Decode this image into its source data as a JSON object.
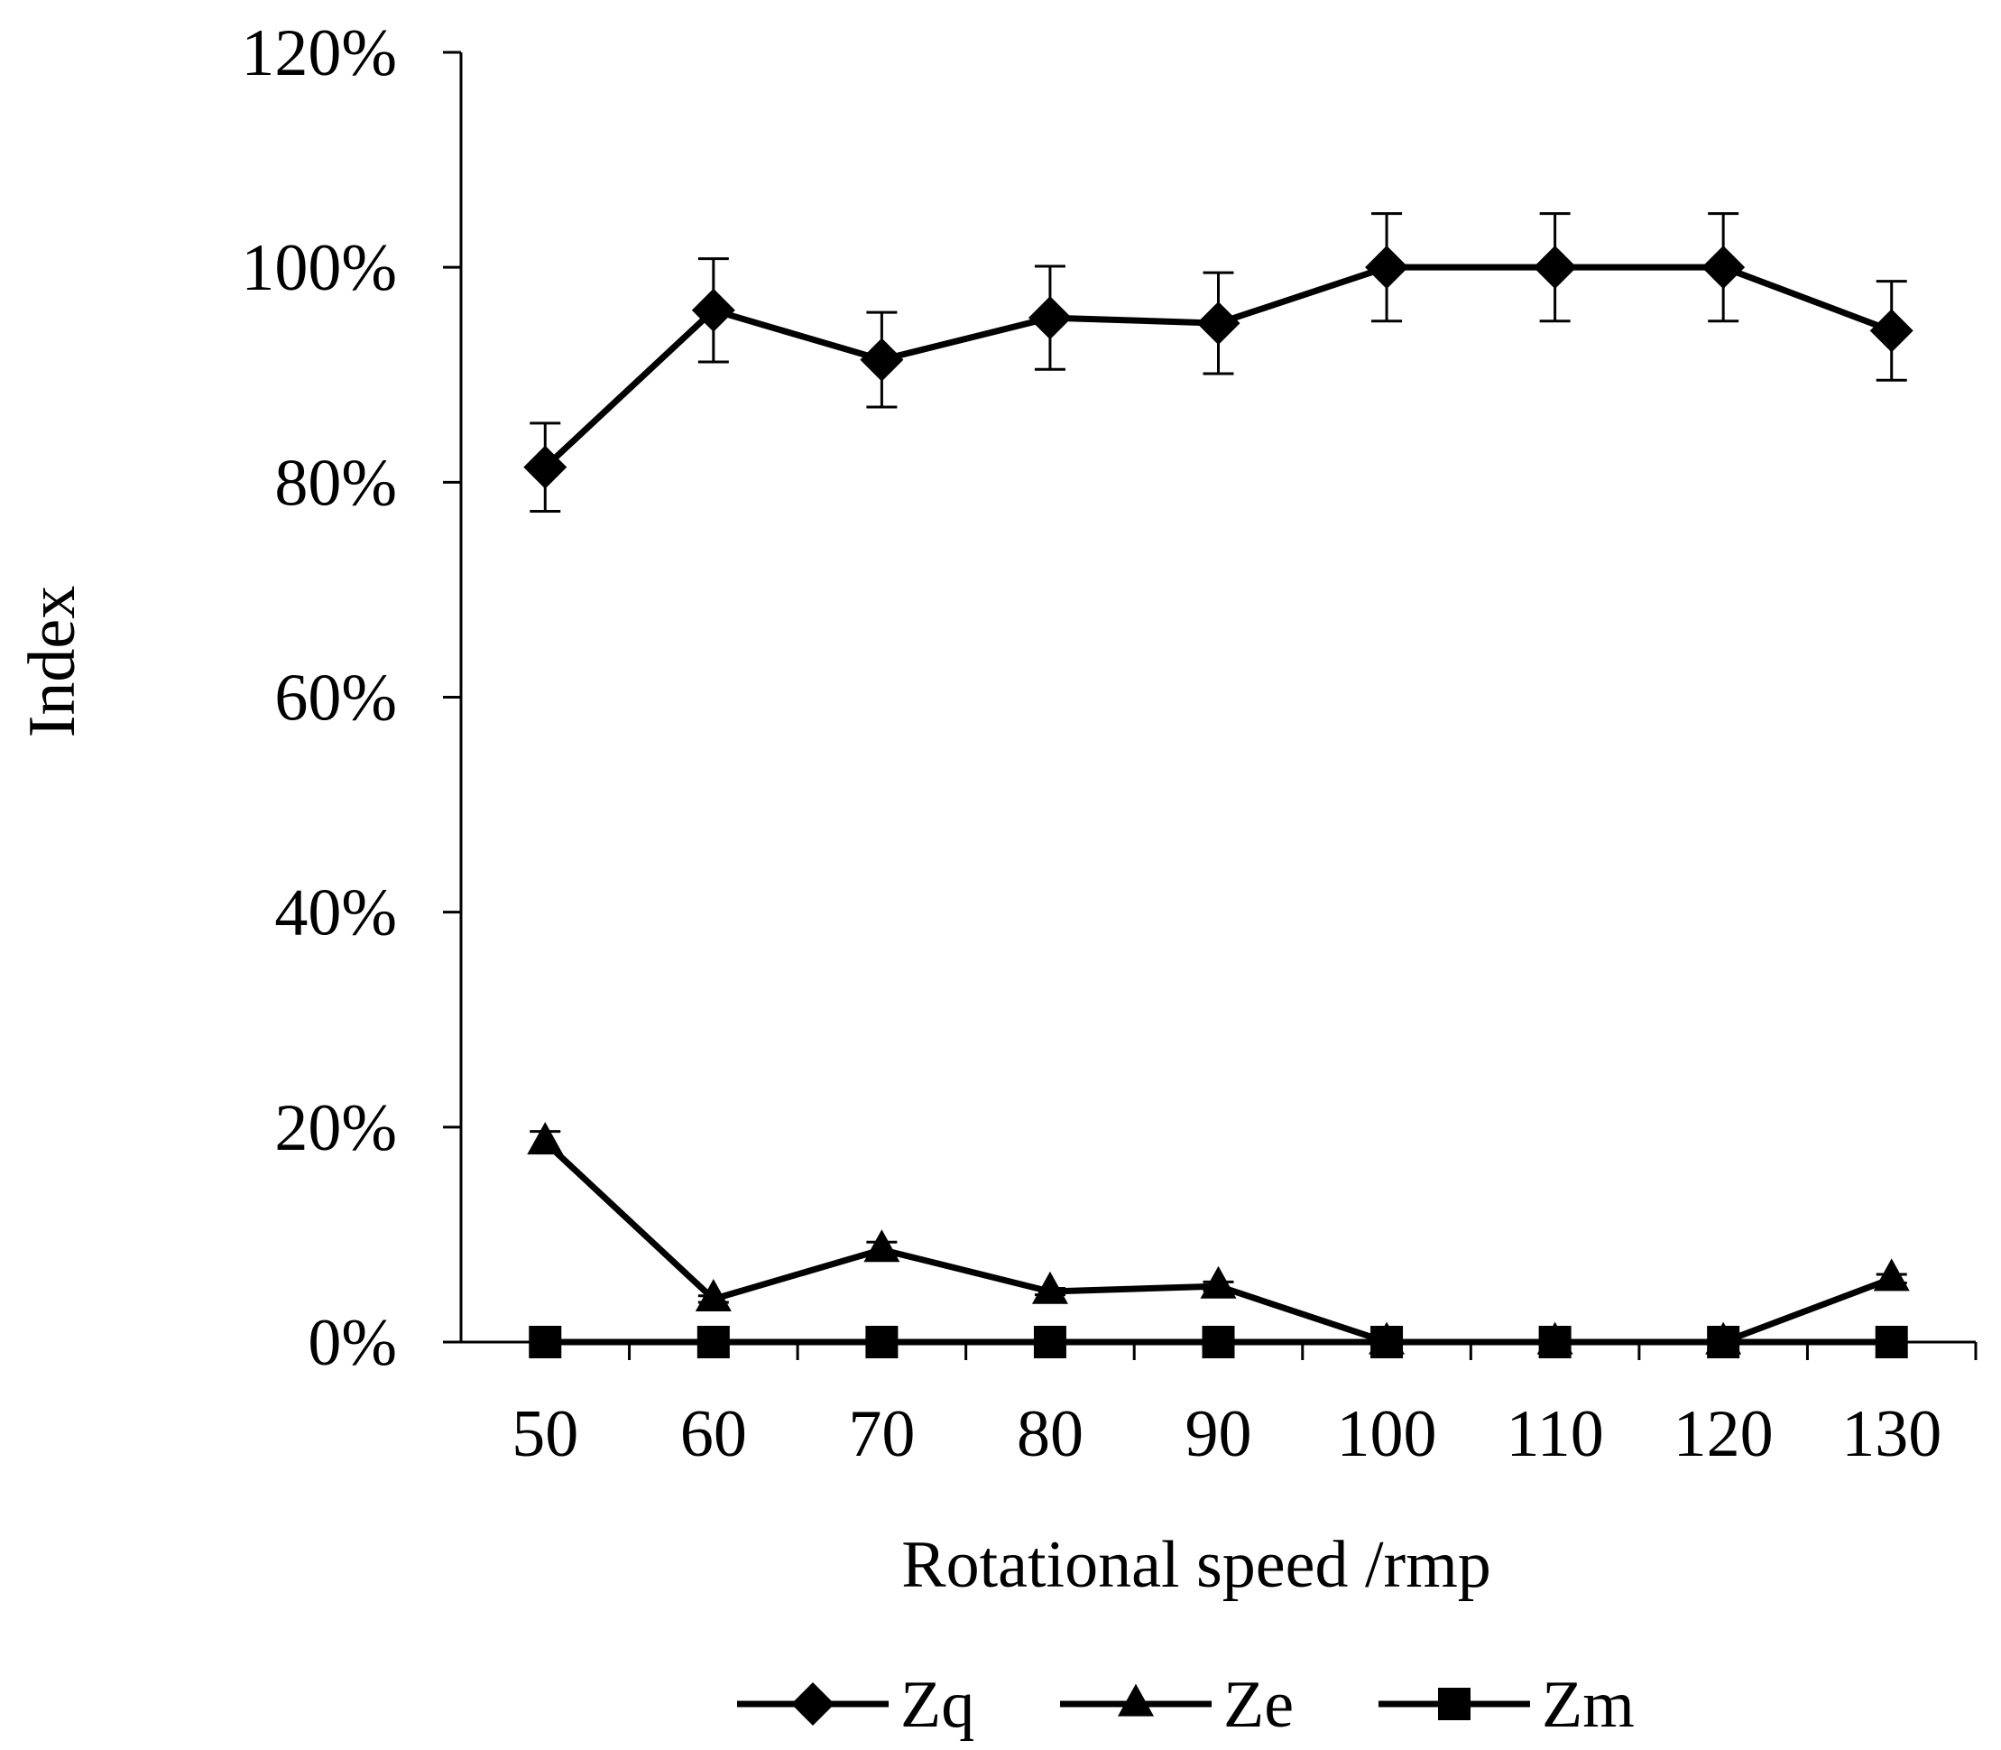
{
  "chart_data": {
    "type": "line",
    "title": "",
    "xlabel": "Rotational speed /rmp",
    "ylabel": "Index",
    "categories": [
      "50",
      "60",
      "70",
      "80",
      "90",
      "100",
      "110",
      "120",
      "130"
    ],
    "y_ticks": [
      "0%",
      "20%",
      "40%",
      "60%",
      "80%",
      "100%",
      "120%"
    ],
    "ylim": [
      0,
      120
    ],
    "grid": false,
    "legend_position": "bottom",
    "series": [
      {
        "name": "Zq",
        "marker": "diamond",
        "values": [
          81.4,
          96.0,
          91.4,
          95.3,
          94.8,
          100.0,
          100.0,
          100.0,
          94.1
        ],
        "error": [
          4.1,
          4.8,
          4.4,
          4.8,
          4.7,
          5.0,
          5.0,
          5.0,
          4.6
        ]
      },
      {
        "name": "Ze",
        "marker": "triangle",
        "values": [
          18.6,
          4.0,
          8.6,
          4.7,
          5.2,
          0,
          0,
          0,
          5.9
        ],
        "error": [
          1.0,
          0.3,
          0.7,
          0.3,
          0.4,
          0,
          0,
          0,
          0.4
        ]
      },
      {
        "name": "Zm",
        "marker": "square",
        "values": [
          0,
          0,
          0,
          0,
          0,
          0,
          0,
          0,
          0
        ],
        "error": [
          0,
          0,
          0,
          0,
          0,
          0,
          0,
          0,
          0
        ]
      }
    ]
  }
}
